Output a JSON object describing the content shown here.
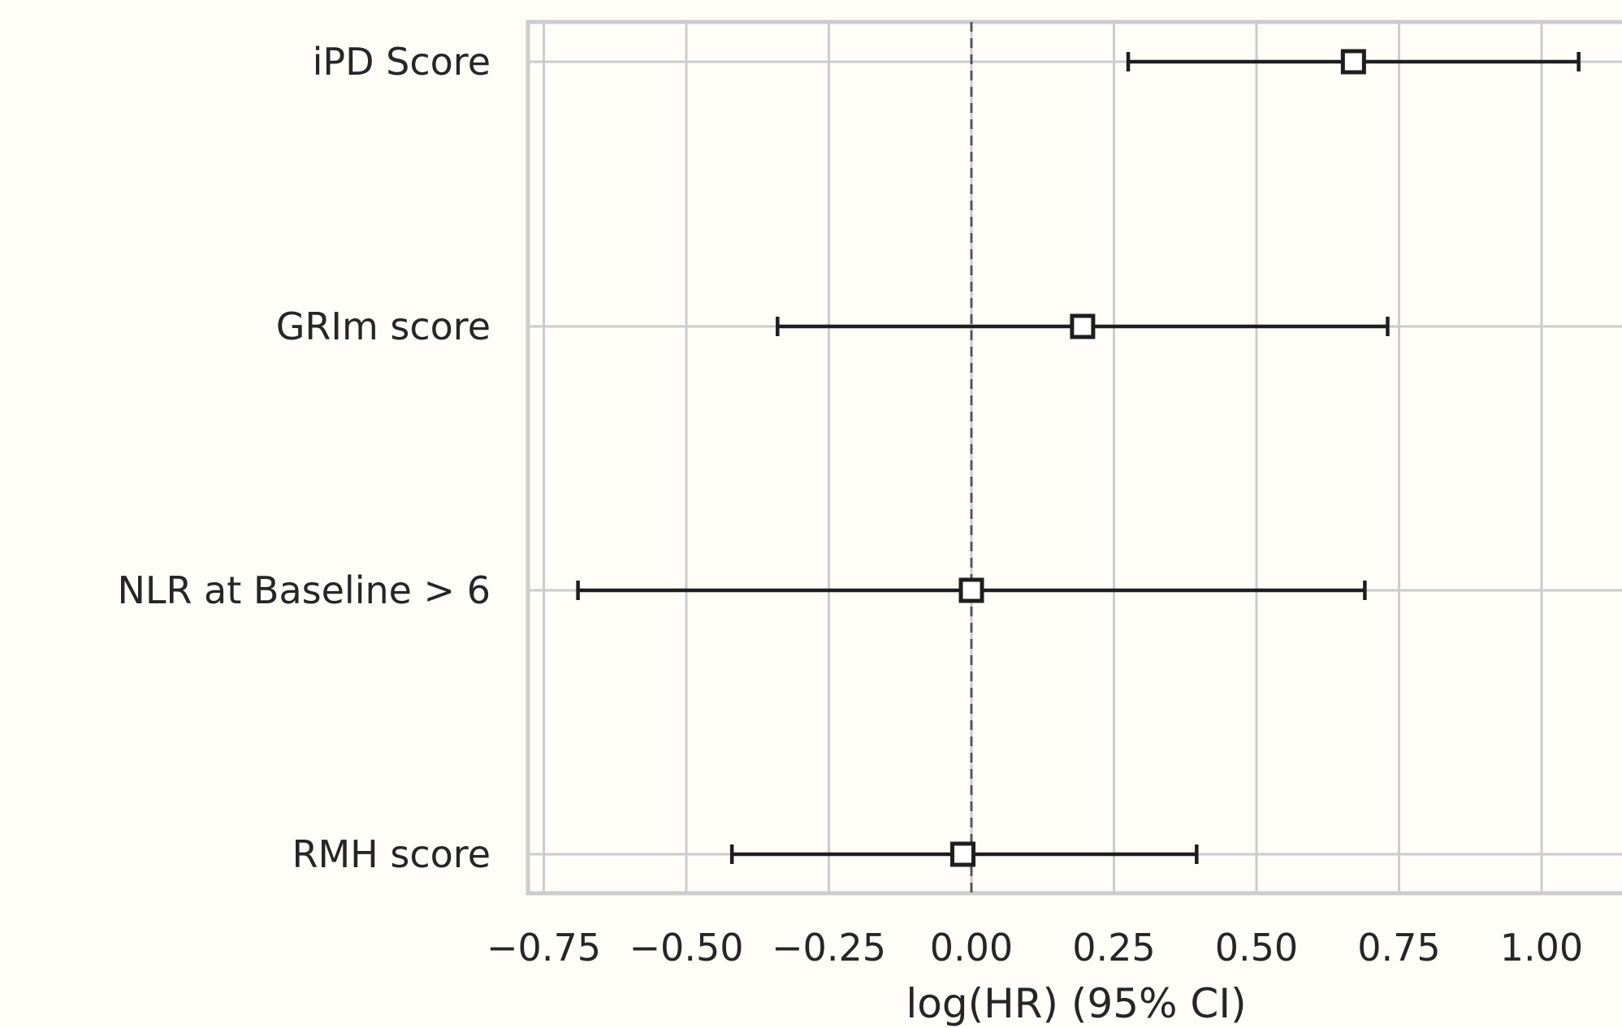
{
  "chart_data": {
    "type": "forest",
    "title": "",
    "xlabel": "log(HR) (95% CI)",
    "ylabel": "",
    "xlim": [
      -0.78,
      1.14
    ],
    "xticks": [
      -0.75,
      -0.5,
      -0.25,
      0.0,
      0.25,
      0.5,
      0.75,
      1.0
    ],
    "xtick_labels": [
      "−0.75",
      "−0.50",
      "−0.25",
      "0.00",
      "0.25",
      "0.50",
      "0.75",
      "1.00"
    ],
    "reference_line": 0.0,
    "grid": true,
    "rows": [
      {
        "label": "iPD Score",
        "estimate": 0.67,
        "lower": 0.275,
        "upper": 1.065
      },
      {
        "label": "GRIm score",
        "estimate": 0.195,
        "lower": -0.34,
        "upper": 0.73
      },
      {
        "label": "NLR at Baseline > 6",
        "estimate": 0.0,
        "lower": -0.69,
        "upper": 0.69
      },
      {
        "label": "RMH score",
        "estimate": -0.015,
        "lower": -0.42,
        "upper": 0.395
      }
    ],
    "colors": {
      "background": "#fffdf8",
      "grid": "#cccccc",
      "marker_edge": "#1e1e1e",
      "marker_fill": "#ffffff",
      "reference_line": "#55555c",
      "text": "#262626"
    }
  }
}
